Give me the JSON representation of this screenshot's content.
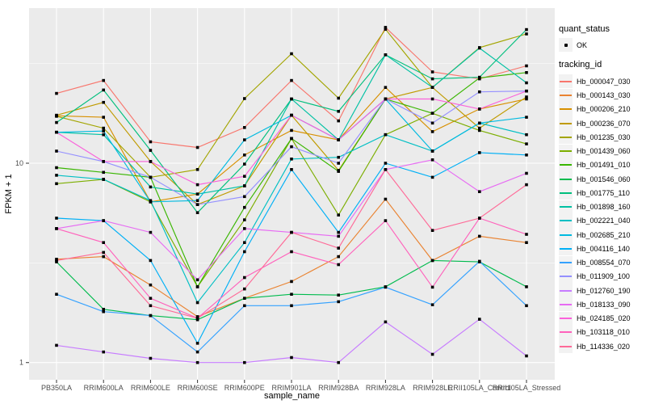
{
  "figure": {
    "background": "#FFFFFF",
    "panel_background": "#EBEBEB",
    "gridline_color": "#FFFFFF",
    "tick_color": "#333333",
    "tick_label_color": "#4D4D4D",
    "text_color": "#000000",
    "point_color": "#000000"
  },
  "legend": {
    "quant_status_title": "quant_status",
    "quant_status_items": [
      {
        "label": "OK",
        "marker": "black-point"
      }
    ],
    "tracking_id_title": "tracking_id"
  },
  "chart_data": {
    "type": "line",
    "title": "",
    "xlabel": "sample_name",
    "ylabel": "FPKM + 1",
    "y_scale": "log10",
    "grid": true,
    "legend_position": "right",
    "ylim": [
      0.82,
      60
    ],
    "y_ticks": [
      {
        "value": 10,
        "label": "10"
      },
      {
        "value": 1,
        "label": "1"
      }
    ],
    "y_minor_ticks": [
      31.623,
      3.1623
    ],
    "x_categories": [
      "PB350LA",
      "RRIM600LA",
      "RRIM600LE",
      "RRIM600SE",
      "RRIM600PE",
      "RRIM901LA",
      "RRIM928BA",
      "RRIM928LA",
      "RRIM928LE",
      "RRII105LA_Control",
      "RRII105LA_Stressed"
    ],
    "series": [
      {
        "name": "Hb_000047_030",
        "color": "#F8766D",
        "values": [
          22.4,
          26.0,
          12.8,
          12.0,
          15.1,
          26.0,
          16.3,
          48.0,
          28.7,
          26.5,
          30.8
        ]
      },
      {
        "name": "Hb_000143_030",
        "color": "#EA8331",
        "values": [
          3.3,
          3.4,
          2.45,
          1.7,
          2.1,
          2.55,
          3.4,
          6.6,
          3.25,
          4.3,
          4.0
        ]
      },
      {
        "name": "Hb_000206_210",
        "color": "#D89000",
        "values": [
          17.3,
          17.0,
          6.4,
          7.0,
          11.0,
          14.6,
          13.1,
          24.0,
          14.4,
          18.7,
          21.0
        ]
      },
      {
        "name": "Hb_000236_070",
        "color": "#C09B00",
        "values": [
          17.4,
          20.2,
          10.2,
          6.2,
          7.7,
          17.4,
          9.2,
          21.0,
          24.0,
          15.0,
          21.5
        ]
      },
      {
        "name": "Hb_001235_030",
        "color": "#A3A500",
        "values": [
          17.2,
          15.0,
          8.5,
          9.3,
          21.1,
          35.4,
          21.2,
          47.0,
          24.0,
          38.0,
          44.5
        ]
      },
      {
        "name": "Hb_001439_060",
        "color": "#7CAE00",
        "values": [
          7.9,
          8.3,
          6.4,
          2.4,
          5.2,
          13.3,
          5.5,
          13.9,
          17.8,
          14.6,
          12.5
        ]
      },
      {
        "name": "Hb_001491_010",
        "color": "#39B600",
        "values": [
          9.5,
          9.0,
          8.5,
          2.4,
          6.0,
          13.3,
          9.1,
          21.0,
          17.8,
          26.8,
          28.5
        ]
      },
      {
        "name": "Hb_001546_060",
        "color": "#00BB4E",
        "values": [
          3.2,
          1.85,
          1.72,
          1.64,
          2.1,
          2.2,
          2.18,
          2.4,
          3.25,
          3.2,
          2.4
        ]
      },
      {
        "name": "Hb_001775_110",
        "color": "#00BF7D",
        "values": [
          16.0,
          23.3,
          11.6,
          5.65,
          9.9,
          21.0,
          18.2,
          35.0,
          26.5,
          27.0,
          46.8
        ]
      },
      {
        "name": "Hb_001898_160",
        "color": "#00C1A3",
        "values": [
          14.3,
          13.9,
          7.6,
          7.0,
          7.7,
          21.0,
          13.1,
          35.0,
          24.0,
          37.8,
          25.3
        ]
      },
      {
        "name": "Hb_002221_040",
        "color": "#00BFC4",
        "values": [
          8.7,
          8.3,
          6.5,
          2.0,
          4.0,
          10.5,
          10.7,
          13.9,
          11.5,
          15.9,
          13.9
        ]
      },
      {
        "name": "Hb_002685_210",
        "color": "#00BAE0",
        "values": [
          14.3,
          14.5,
          6.4,
          6.5,
          13.1,
          17.4,
          13.1,
          21.0,
          11.5,
          15.9,
          17.0
        ]
      },
      {
        "name": "Hb_004116_140",
        "color": "#00B0F6",
        "values": [
          5.3,
          5.15,
          3.25,
          1.25,
          3.6,
          9.3,
          4.5,
          10.0,
          8.5,
          11.3,
          11.0
        ]
      },
      {
        "name": "Hb_008554_070",
        "color": "#35A2FF",
        "values": [
          2.2,
          1.8,
          1.72,
          1.13,
          1.93,
          1.93,
          2.02,
          2.39,
          1.95,
          3.22,
          1.93
        ]
      },
      {
        "name": "Hb_011909_100",
        "color": "#9590FF",
        "values": [
          11.5,
          10.2,
          8.5,
          6.2,
          6.8,
          12.1,
          10.0,
          21.0,
          15.9,
          22.8,
          23.0
        ]
      },
      {
        "name": "Hb_012760_190",
        "color": "#C77CFF",
        "values": [
          1.22,
          1.13,
          1.05,
          1.0,
          1.0,
          1.06,
          1.0,
          1.6,
          1.1,
          1.65,
          1.08
        ]
      },
      {
        "name": "Hb_018133_090",
        "color": "#E76BF3",
        "values": [
          4.7,
          5.15,
          4.5,
          2.6,
          4.7,
          4.5,
          4.3,
          9.3,
          10.4,
          7.2,
          8.9
        ]
      },
      {
        "name": "Hb_024185_020",
        "color": "#FA62DB",
        "values": [
          14.3,
          10.2,
          10.2,
          7.8,
          8.6,
          17.4,
          13.1,
          21.0,
          21.0,
          18.7,
          23.0
        ]
      },
      {
        "name": "Hb_103118_010",
        "color": "#FF62BC",
        "values": [
          4.7,
          4.0,
          2.1,
          1.67,
          2.67,
          3.6,
          3.1,
          5.15,
          2.39,
          5.3,
          4.4
        ]
      },
      {
        "name": "Hb_114336_020",
        "color": "#FF6A98",
        "values": [
          3.25,
          3.57,
          1.93,
          1.67,
          2.34,
          4.5,
          3.75,
          9.3,
          4.6,
          5.3,
          7.8
        ]
      }
    ]
  }
}
